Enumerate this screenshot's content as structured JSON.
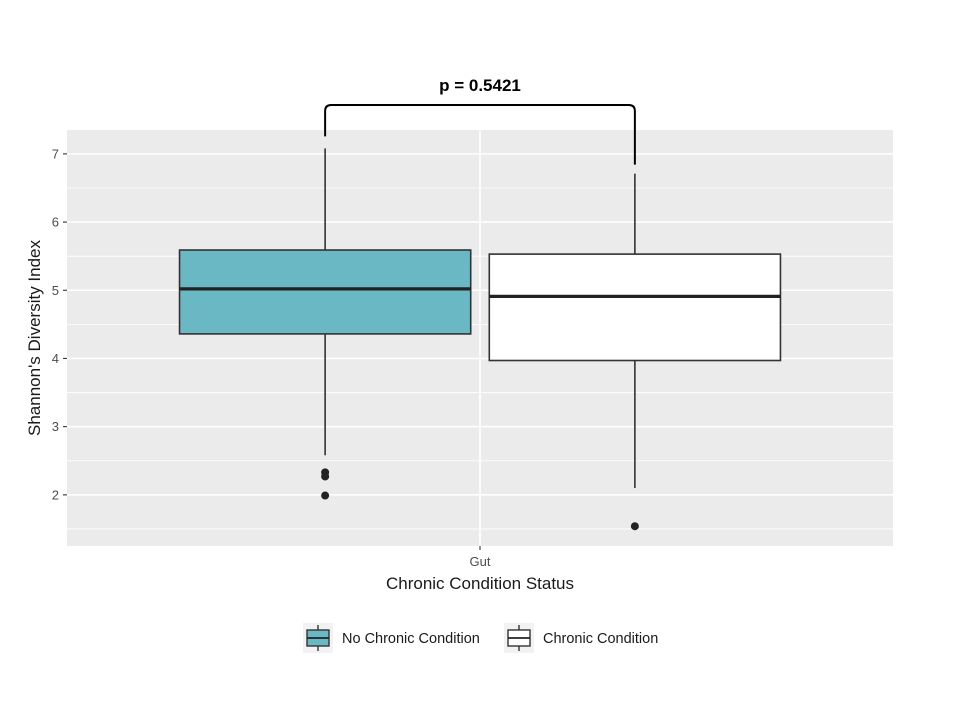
{
  "chart_data": {
    "type": "boxplot",
    "xlabel": "Chronic Condition Status",
    "ylabel": "Shannon's Diversity Index",
    "categories": [
      "Gut"
    ],
    "ylim": [
      1.25,
      7.35
    ],
    "yticks": [
      2,
      3,
      4,
      5,
      6,
      7
    ],
    "grid": true,
    "legend_position": "bottom",
    "annotation": "p = 0.5421",
    "series": [
      {
        "name": "No Chronic Condition",
        "color": "#6ab8c3",
        "whisker_low": 2.58,
        "q1": 4.36,
        "median": 5.02,
        "q3": 5.59,
        "whisker_high": 7.08,
        "outliers": [
          2.33,
          2.27,
          1.99
        ]
      },
      {
        "name": "Chronic Condition",
        "color": "#ffffff",
        "whisker_low": 2.1,
        "q1": 3.97,
        "median": 4.91,
        "q3": 5.53,
        "whisker_high": 6.71,
        "outliers": [
          1.54
        ]
      }
    ]
  }
}
